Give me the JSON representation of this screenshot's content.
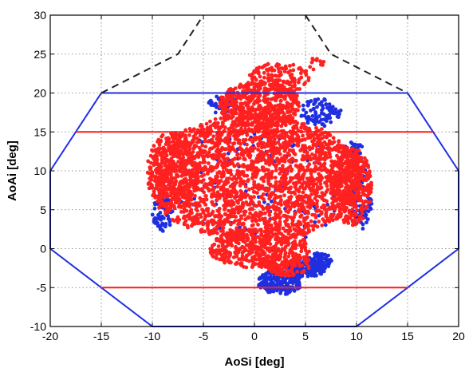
{
  "chart_data": {
    "type": "scatter",
    "title": "",
    "xlabel": "AoSi [deg]",
    "ylabel": "AoAi [deg]",
    "xlim": [
      -20,
      20
    ],
    "ylim": [
      -10,
      30
    ],
    "x_ticks": [
      -20,
      -15,
      -10,
      -5,
      0,
      5,
      10,
      15,
      20
    ],
    "y_ticks": [
      -10,
      -5,
      0,
      5,
      10,
      15,
      20,
      25,
      30
    ],
    "grid": true,
    "legend": "none",
    "series": [
      {
        "kind": "boundary",
        "color": "#1f2fe0",
        "style": "solid",
        "points": [
          [
            -15,
            20
          ],
          [
            15,
            20
          ],
          [
            20,
            10
          ],
          [
            20,
            0
          ],
          [
            15,
            -5
          ],
          [
            10,
            -10
          ],
          [
            -10,
            -10
          ],
          [
            -15,
            -5
          ],
          [
            -20,
            0
          ],
          [
            -20,
            10
          ],
          [
            -15,
            20
          ]
        ]
      },
      {
        "kind": "boundary",
        "color": "#ff1a1a",
        "style": "solid",
        "segments": [
          [
            [
              -17.5,
              15
            ],
            [
              17.5,
              15
            ]
          ],
          [
            [
              -15,
              -5
            ],
            [
              15,
              -5
            ]
          ]
        ]
      },
      {
        "kind": "boundary",
        "color": "#222222",
        "style": "dashed",
        "points": [
          [
            -15,
            20
          ],
          [
            -7.5,
            25
          ],
          [
            -5,
            30
          ]
        ],
        "points2": [
          [
            5,
            30
          ],
          [
            7.5,
            25
          ],
          [
            15,
            20
          ]
        ]
      },
      {
        "kind": "scatter",
        "color": "#1f2fe0",
        "clusters": [
          {
            "cx": 2.5,
            "cy": -4.3,
            "rx": 2.2,
            "ry": 1.6,
            "n": 180
          },
          {
            "cx": 5.0,
            "cy": -2.5,
            "rx": 2.0,
            "ry": 1.2,
            "n": 140
          },
          {
            "cx": 6.5,
            "cy": -1.5,
            "rx": 1.2,
            "ry": 1.0,
            "n": 60
          },
          {
            "cx": 6.5,
            "cy": 17.5,
            "rx": 2.0,
            "ry": 1.8,
            "n": 90
          },
          {
            "cx": -3.0,
            "cy": 18.5,
            "rx": 1.5,
            "ry": 1.2,
            "n": 40
          },
          {
            "cx": -9.0,
            "cy": 4.5,
            "rx": 1.0,
            "ry": 2.5,
            "n": 70
          },
          {
            "cx": 10.5,
            "cy": 6.5,
            "rx": 1.0,
            "ry": 4.0,
            "n": 80
          },
          {
            "cx": 9.8,
            "cy": 12.5,
            "rx": 1.0,
            "ry": 1.5,
            "n": 40
          },
          {
            "cx": 0.0,
            "cy": 8.0,
            "rx": 9.0,
            "ry": 8.0,
            "n": 120
          }
        ]
      },
      {
        "kind": "scatter",
        "color": "#ff2020",
        "clusters": [
          {
            "cx": 0.0,
            "cy": 9.0,
            "rx": 10.5,
            "ry": 8.2,
            "n": 2400
          },
          {
            "cx": 0.5,
            "cy": 18.5,
            "rx": 4.0,
            "ry": 3.0,
            "n": 500
          },
          {
            "cx": 2.5,
            "cy": 22.0,
            "rx": 3.0,
            "ry": 2.0,
            "n": 140
          },
          {
            "cx": 0.5,
            "cy": 0.0,
            "rx": 5.0,
            "ry": 2.5,
            "n": 400
          },
          {
            "cx": 3.0,
            "cy": -2.0,
            "rx": 2.5,
            "ry": 1.5,
            "n": 120
          },
          {
            "cx": -8.0,
            "cy": 10.0,
            "rx": 2.5,
            "ry": 5.0,
            "n": 300
          },
          {
            "cx": 9.5,
            "cy": 8.0,
            "rx": 2.0,
            "ry": 5.0,
            "n": 300
          },
          {
            "cx": 6.0,
            "cy": 23.8,
            "rx": 0.8,
            "ry": 1.0,
            "n": 12
          }
        ]
      }
    ]
  }
}
